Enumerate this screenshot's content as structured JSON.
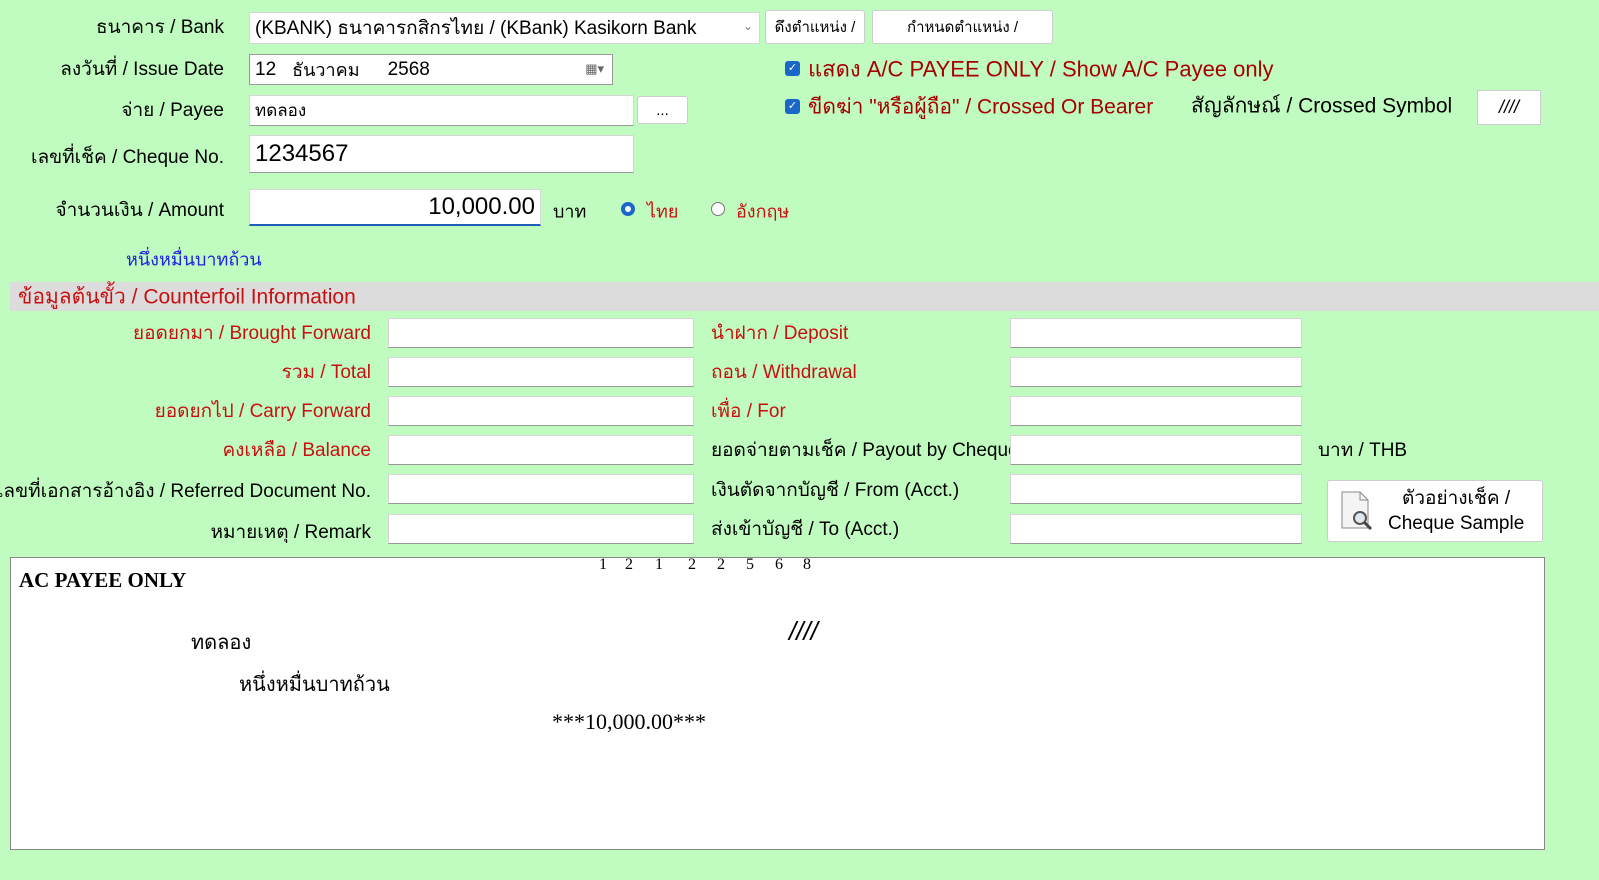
{
  "form": {
    "bank_label": "ธนาคาร / Bank",
    "bank_value": "(KBANK) ธนาคารกสิกรไทย / (KBank) Kasikorn Bank",
    "get_position_button": "ดึงตำแหน่ง /",
    "set_position_button": "กำหนดตำแหน่ง /",
    "issue_date_label": "ลงวันที่ / Issue Date",
    "issue_date_day": "12",
    "issue_date_month": "ธันวาคม",
    "issue_date_year": "2568",
    "show_payee_only_label": "แสดง A/C PAYEE ONLY / Show A/C Payee only",
    "show_payee_only_checked": true,
    "payee_label": "จ่าย / Payee",
    "payee_value": "ทดลอง",
    "payee_browse_button": "...",
    "crossed_bearer_label": "ขีดฆ่า \"หรือผู้ถือ\" / Crossed Or Bearer",
    "crossed_bearer_checked": true,
    "crossed_symbol_label": "สัญลักษณ์ / Crossed Symbol",
    "crossed_symbol_value": "////",
    "cheque_no_label": "เลขที่เช็ค / Cheque No.",
    "cheque_no_value": "1234567",
    "amount_label": "จำนวนเงิน / Amount",
    "amount_value": "10,000.00",
    "amount_unit": "บาท",
    "lang_thai": "ไทย",
    "lang_english": "อังกฤษ",
    "lang_selected": "ไทย",
    "amount_words": "หนึ่งหมื่นบาทถ้วน"
  },
  "counterfoil": {
    "header": "ข้อมูลต้นขั้ว / Counterfoil Information",
    "left": [
      {
        "label": "ยอดยกมา / Brought Forward",
        "value": ""
      },
      {
        "label": "รวม / Total",
        "value": ""
      },
      {
        "label": "ยอดยกไป / Carry Forward",
        "value": ""
      },
      {
        "label": "คงเหลือ / Balance",
        "value": ""
      },
      {
        "label": "เลขที่เอกสารอ้างอิง / Referred Document No.",
        "value": ""
      },
      {
        "label": "หมายเหตุ / Remark",
        "value": ""
      }
    ],
    "right": [
      {
        "label": "นำฝาก / Deposit",
        "value": ""
      },
      {
        "label": "ถอน / Withdrawal",
        "value": ""
      },
      {
        "label": "เพื่อ / For",
        "value": ""
      },
      {
        "label": "ยอดจ่ายตามเช็ค / Payout by Cheque",
        "value": ""
      },
      {
        "label": "เงินตัดจากบัญชี /  From (Acct.)",
        "value": ""
      },
      {
        "label": "ส่งเข้าบัญชี / To (Acct.)",
        "value": ""
      }
    ],
    "currency_label": "บาท / THB",
    "cheque_sample_line1": "ตัวอย่างเช็ค /",
    "cheque_sample_line2": "Cheque Sample"
  },
  "preview": {
    "date_digits": [
      "1",
      "2",
      "1",
      "2",
      "2",
      "5",
      "6",
      "8"
    ],
    "ac_payee": "AC PAYEE ONLY",
    "payee": "ทดลอง",
    "crossed_symbol": "////",
    "amount_words": "หนึ่งหมื่นบาทถ้วน",
    "amount": "***10,000.00***"
  },
  "colors": {
    "background": "#c0fcc0",
    "label_red": "#c81010",
    "accent_blue": "#1a66c9",
    "words_blue": "#2020e0"
  }
}
